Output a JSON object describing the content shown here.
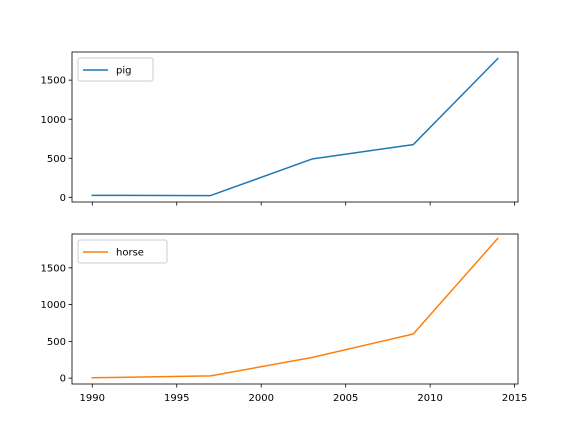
{
  "chart_data": [
    {
      "type": "line",
      "title": "",
      "xlabel": "",
      "ylabel": "",
      "xlim": [
        1988.8,
        2015.2
      ],
      "ylim": [
        -60,
        1860
      ],
      "x": [
        1990,
        1997,
        2003,
        2009,
        2014
      ],
      "x_ticks": [
        1990,
        1995,
        2000,
        2005,
        2010,
        2015
      ],
      "x_tick_labels_visible": false,
      "y_ticks": [
        0,
        500,
        1000,
        1500
      ],
      "y_tick_labels": [
        "0",
        "500",
        "1000",
        "1500"
      ],
      "grid": false,
      "legend_position": "upper-left",
      "series": [
        {
          "name": "pig",
          "color": "#1f77b4",
          "values": [
            25,
            22,
            490,
            675,
            1775
          ]
        }
      ]
    },
    {
      "type": "line",
      "title": "",
      "xlabel": "",
      "ylabel": "",
      "xlim": [
        1988.8,
        2015.2
      ],
      "ylim": [
        -80,
        1960
      ],
      "x": [
        1990,
        1997,
        2003,
        2009,
        2014
      ],
      "x_ticks": [
        1990,
        1995,
        2000,
        2005,
        2010,
        2015
      ],
      "x_tick_labels": [
        "1990",
        "1995",
        "2000",
        "2005",
        "2010",
        "2015"
      ],
      "x_tick_labels_visible": true,
      "y_ticks": [
        0,
        500,
        1000,
        1500
      ],
      "y_tick_labels": [
        "0",
        "500",
        "1000",
        "1500"
      ],
      "grid": false,
      "legend_position": "upper-left",
      "series": [
        {
          "name": "horse",
          "color": "#ff7f0e",
          "values": [
            5,
            30,
            280,
            600,
            1900
          ]
        }
      ]
    }
  ]
}
